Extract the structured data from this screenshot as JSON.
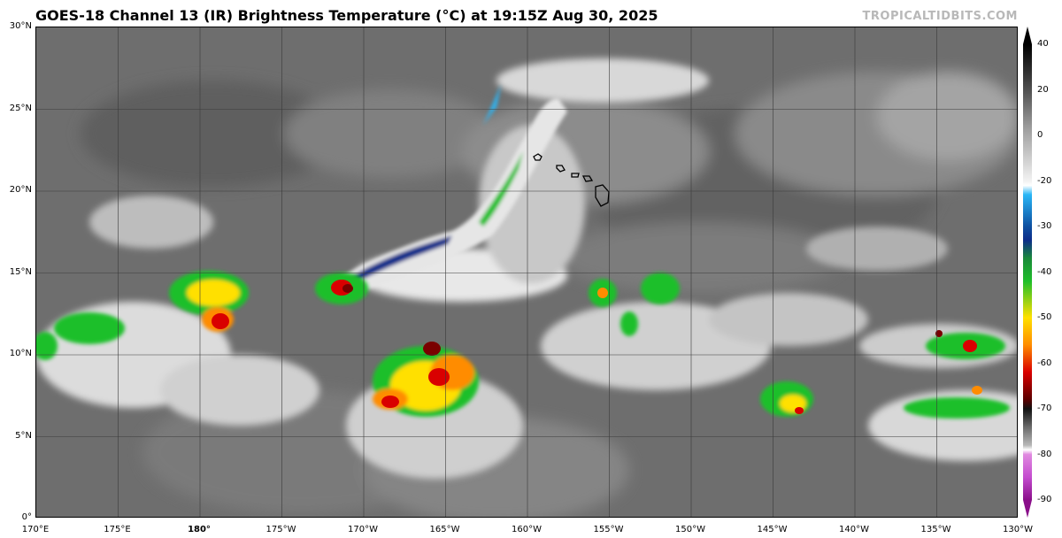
{
  "header": {
    "title": "GOES-18 Channel 13 (IR) Brightness Temperature (°C) at 19:15Z Aug 30, 2025",
    "credit": "TROPICALTIDBITS.COM"
  },
  "axes": {
    "lat_labels": [
      "30°N",
      "25°N",
      "20°N",
      "15°N",
      "10°N",
      "5°N",
      "0°"
    ],
    "lon_labels": [
      "170°E",
      "175°E",
      "180°",
      "175°W",
      "170°W",
      "165°W",
      "160°W",
      "155°W",
      "150°W",
      "145°W",
      "140°W",
      "135°W",
      "130°W"
    ]
  },
  "colorbar": {
    "labels": [
      "40",
      "20",
      "0",
      "-20",
      "-30",
      "-40",
      "-50",
      "-60",
      "-70",
      "-80",
      "-90"
    ],
    "colors": {
      "warm_top": "#000000",
      "gray_high": "#404040",
      "gray_low": "#f2f2f2",
      "cyan": "#29b6f6",
      "blue": "#0d2d8a",
      "green": "#1fbf2a",
      "yellow": "#ffe000",
      "orange": "#ff8c00",
      "red": "#d90000",
      "dark_red": "#5a0000",
      "magenta": "#c44ccf"
    }
  },
  "map": {
    "background": "#6e6e6e",
    "cloud_colors": [
      "#d8d8d8",
      "#efefef",
      "#1fbf2a",
      "#ffe000",
      "#ff8c00",
      "#d90000",
      "#7a0000",
      "#0d2d8a",
      "#29b6f6"
    ]
  }
}
